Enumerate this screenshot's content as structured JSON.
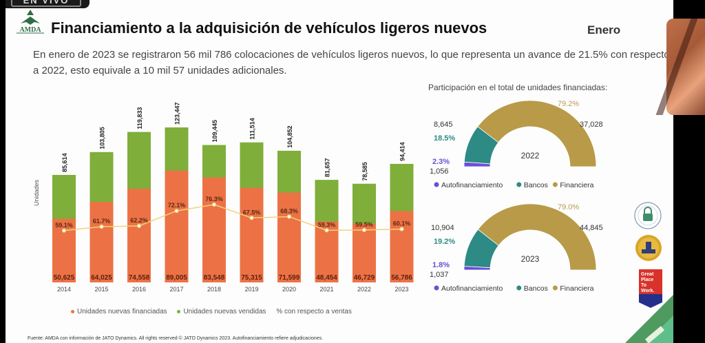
{
  "live_badge": "EN VIVO",
  "logo_text": "AMDA",
  "title": "Financiamiento a la adquisición de vehículos ligeros nuevos",
  "month": "Enero",
  "summary": "En enero de 2023 se registraron 56 mil 786 colocaciones de vehículos ligeros nuevos, lo que representa un avance de 21.5% con respecto a 2022, esto equivale a 10 mil 57 unidades adicionales.",
  "donut_section_title": "Participación en el total de unidades financiadas:",
  "source": "Fuente: AMDA con información de JATO Dynamics. All rights reserved © JATO Dynamics 2023. Autofinanciamiento refiere adjudicaciones.",
  "badges": [
    "certification-seal",
    "crese-seal",
    "Great Place To Work Certificado"
  ],
  "colors": {
    "financiadas": "#ec7245",
    "vendidas": "#7fae3a",
    "pct_line": "#f2d27a",
    "autofinanciamiento": "#6a4fd6",
    "bancos": "#2e8a84",
    "financiera": "#b89a48",
    "accent_green": "#3e7d55"
  },
  "chart_data": [
    {
      "type": "bar",
      "stacked": true,
      "title": "",
      "xlabel": "",
      "ylabel": "Unidades",
      "categories": [
        "2014",
        "2015",
        "2016",
        "2017",
        "2018",
        "2019",
        "2020",
        "2021",
        "2022",
        "2023"
      ],
      "series": [
        {
          "name": "Unidades nuevas financiadas",
          "values": [
            50625,
            64025,
            74558,
            89005,
            83548,
            75315,
            71599,
            48454,
            46729,
            56786
          ]
        },
        {
          "name": "Unidades nuevas vendidas",
          "values": [
            85614,
            103805,
            119833,
            123447,
            109445,
            111514,
            104852,
            81657,
            78585,
            94414
          ]
        },
        {
          "name": "% con respecto a ventas",
          "type": "line",
          "values": [
            59.1,
            61.7,
            62.2,
            72.1,
            76.3,
            67.5,
            68.3,
            59.3,
            59.5,
            60.1
          ]
        }
      ],
      "value_labels": {
        "financiadas": [
          "50,625",
          "64,025",
          "74,558",
          "89,005",
          "83,548",
          "75,315",
          "71,599",
          "48,454",
          "46,729",
          "56,786"
        ],
        "vendidas": [
          "85,614",
          "103,805",
          "119,833",
          "123,447",
          "109,445",
          "111,514",
          "104,852",
          "81,657",
          "78,585",
          "94,414"
        ],
        "pct": [
          "59.1%",
          "61.7%",
          "62.2%",
          "72.1%",
          "76.3%",
          "67.5%",
          "68.3%",
          "59.3%",
          "59.5%",
          "60.1%"
        ]
      },
      "legend": [
        "Unidades nuevas financiadas",
        "Unidades nuevas vendidas",
        "% con respecto a ventas"
      ],
      "legend_position": "bottom",
      "grid": false
    },
    {
      "type": "pie",
      "variant": "half-donut",
      "center_label": "2022",
      "categories": [
        "Autofinanciamiento",
        "Bancos",
        "Financiera"
      ],
      "values": [
        1056,
        8645,
        37028
      ],
      "value_labels": [
        "1,056",
        "8,645",
        "37,028"
      ],
      "percent_labels": [
        "2.3%",
        "18.5%",
        "79.2%"
      ],
      "legend_position": "bottom"
    },
    {
      "type": "pie",
      "variant": "half-donut",
      "center_label": "2023",
      "categories": [
        "Autofinanciamiento",
        "Bancos",
        "Financiera"
      ],
      "values": [
        1037,
        10904,
        44845
      ],
      "value_labels": [
        "1,037",
        "10,904",
        "44,845"
      ],
      "percent_labels": [
        "1.8%",
        "19.2%",
        "79.0%"
      ],
      "legend_position": "bottom"
    }
  ]
}
